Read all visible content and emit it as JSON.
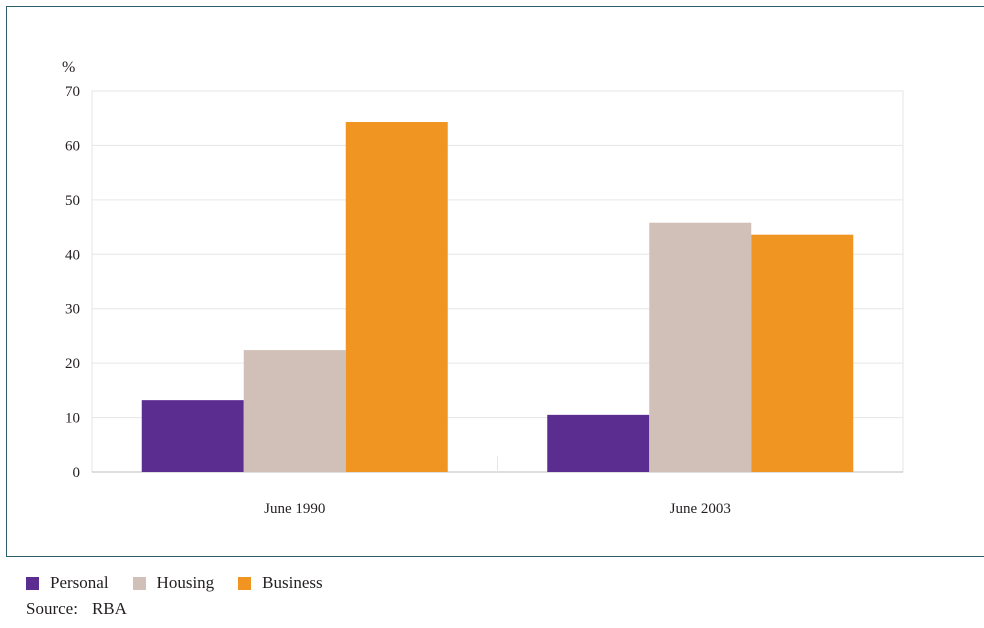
{
  "chart_data": {
    "type": "bar",
    "ylabel": "%",
    "ylim": [
      0,
      70
    ],
    "yticks": [
      0,
      10,
      20,
      30,
      40,
      50,
      60,
      70
    ],
    "categories": [
      "June 1990",
      "June 2003"
    ],
    "grid": true,
    "legend_placement": "bottom-left",
    "series": [
      {
        "name": "Personal",
        "color": "#5b2d91",
        "values": [
          13.2,
          10.5
        ]
      },
      {
        "name": "Housing",
        "color": "#d0c0b8",
        "values": [
          22.4,
          45.8
        ]
      },
      {
        "name": "Business",
        "color": "#f09521",
        "values": [
          64.3,
          43.6
        ]
      }
    ]
  },
  "source": {
    "label": "Source:",
    "value": "RBA"
  }
}
